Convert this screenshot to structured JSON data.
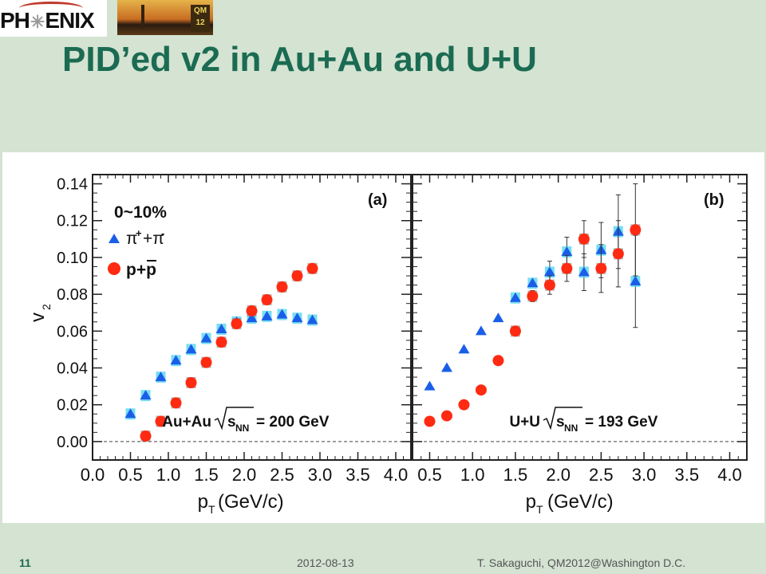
{
  "header": {
    "logo_text_a": "PH",
    "logo_text_b": "ENIX",
    "badge_line1": "QM",
    "badge_line2": "12"
  },
  "slide": {
    "title": "PID’ed v2 in Au+Au and U+U"
  },
  "footer": {
    "slide_number": "11",
    "date": "2012-08-13",
    "author": "T. Sakaguchi, QM2012@Washington D.C."
  },
  "colors": {
    "title": "#1b6b52",
    "background": "#d4e3d2",
    "pion": "#1a5ee8",
    "pion_sys": "#5fd8ee",
    "proton": "#ff2a12",
    "proton_sys": "#7a7a7a"
  },
  "chart_data": [
    {
      "type": "scatter",
      "panel_label": "(a)",
      "centrality": "0~10%",
      "system": "Au+Au",
      "energy": "= 200 GeV",
      "ylabel": "v2",
      "xlabel": "pT(GeV/c)",
      "xlim": [
        0.0,
        4.2
      ],
      "ylim": [
        -0.01,
        0.145
      ],
      "x_ticks": [
        "0.0",
        "0.5",
        "1.0",
        "1.5",
        "2.0",
        "2.5",
        "3.0",
        "3.5",
        "4.0"
      ],
      "y_ticks": [
        "0.00",
        "0.02",
        "0.04",
        "0.06",
        "0.08",
        "0.10",
        "0.12",
        "0.14"
      ],
      "legend_placement": "top-left",
      "series": [
        {
          "name": "π++π-",
          "marker": "triangle",
          "x": [
            0.5,
            0.7,
            0.9,
            1.1,
            1.3,
            1.5,
            1.7,
            1.9,
            2.1,
            2.3,
            2.5,
            2.7,
            2.9
          ],
          "y": [
            0.015,
            0.025,
            0.035,
            0.044,
            0.05,
            0.056,
            0.061,
            0.065,
            0.067,
            0.068,
            0.069,
            0.067,
            0.066
          ]
        },
        {
          "name": "p+p̄",
          "marker": "circle",
          "x": [
            0.7,
            0.9,
            1.1,
            1.3,
            1.5,
            1.7,
            1.9,
            2.1,
            2.3,
            2.5,
            2.7,
            2.9
          ],
          "y": [
            0.003,
            0.011,
            0.021,
            0.032,
            0.043,
            0.054,
            0.064,
            0.071,
            0.077,
            0.084,
            0.09,
            0.094
          ]
        }
      ]
    },
    {
      "type": "scatter",
      "panel_label": "(b)",
      "system": "U+U",
      "energy": "= 193 GeV",
      "xlabel": "pT (GeV/c)",
      "xlim": [
        0.3,
        4.2
      ],
      "ylim": [
        -0.01,
        0.145
      ],
      "x_ticks": [
        "0.5",
        "1.0",
        "1.5",
        "2.0",
        "2.5",
        "3.0",
        "3.5",
        "4.0"
      ],
      "series": [
        {
          "name": "π++π-",
          "marker": "triangle",
          "x": [
            0.5,
            0.7,
            0.9,
            1.1,
            1.3,
            1.5,
            1.7,
            1.9,
            2.1,
            2.3,
            2.5,
            2.7,
            2.9
          ],
          "y": [
            0.03,
            0.04,
            0.05,
            0.06,
            0.067,
            0.078,
            0.086,
            0.092,
            0.103,
            0.092,
            0.104,
            0.114,
            0.087
          ],
          "err": [
            0,
            0,
            0,
            0,
            0,
            0,
            0,
            0.006,
            0.008,
            0.01,
            0.015,
            0.02,
            0.025
          ]
        },
        {
          "name": "p+p̄",
          "marker": "circle",
          "x": [
            0.5,
            0.7,
            0.9,
            1.1,
            1.3,
            1.5,
            1.7,
            1.9,
            2.1,
            2.3,
            2.5,
            2.7,
            2.9
          ],
          "y": [
            0.011,
            0.014,
            0.02,
            0.028,
            0.044,
            0.06,
            0.079,
            0.085,
            0.094,
            0.11,
            0.094,
            0.102,
            0.115
          ],
          "err": [
            0,
            0,
            0,
            0,
            0,
            0,
            0.003,
            0.005,
            0.007,
            0.01,
            0.013,
            0.018,
            0.025
          ]
        }
      ]
    }
  ]
}
